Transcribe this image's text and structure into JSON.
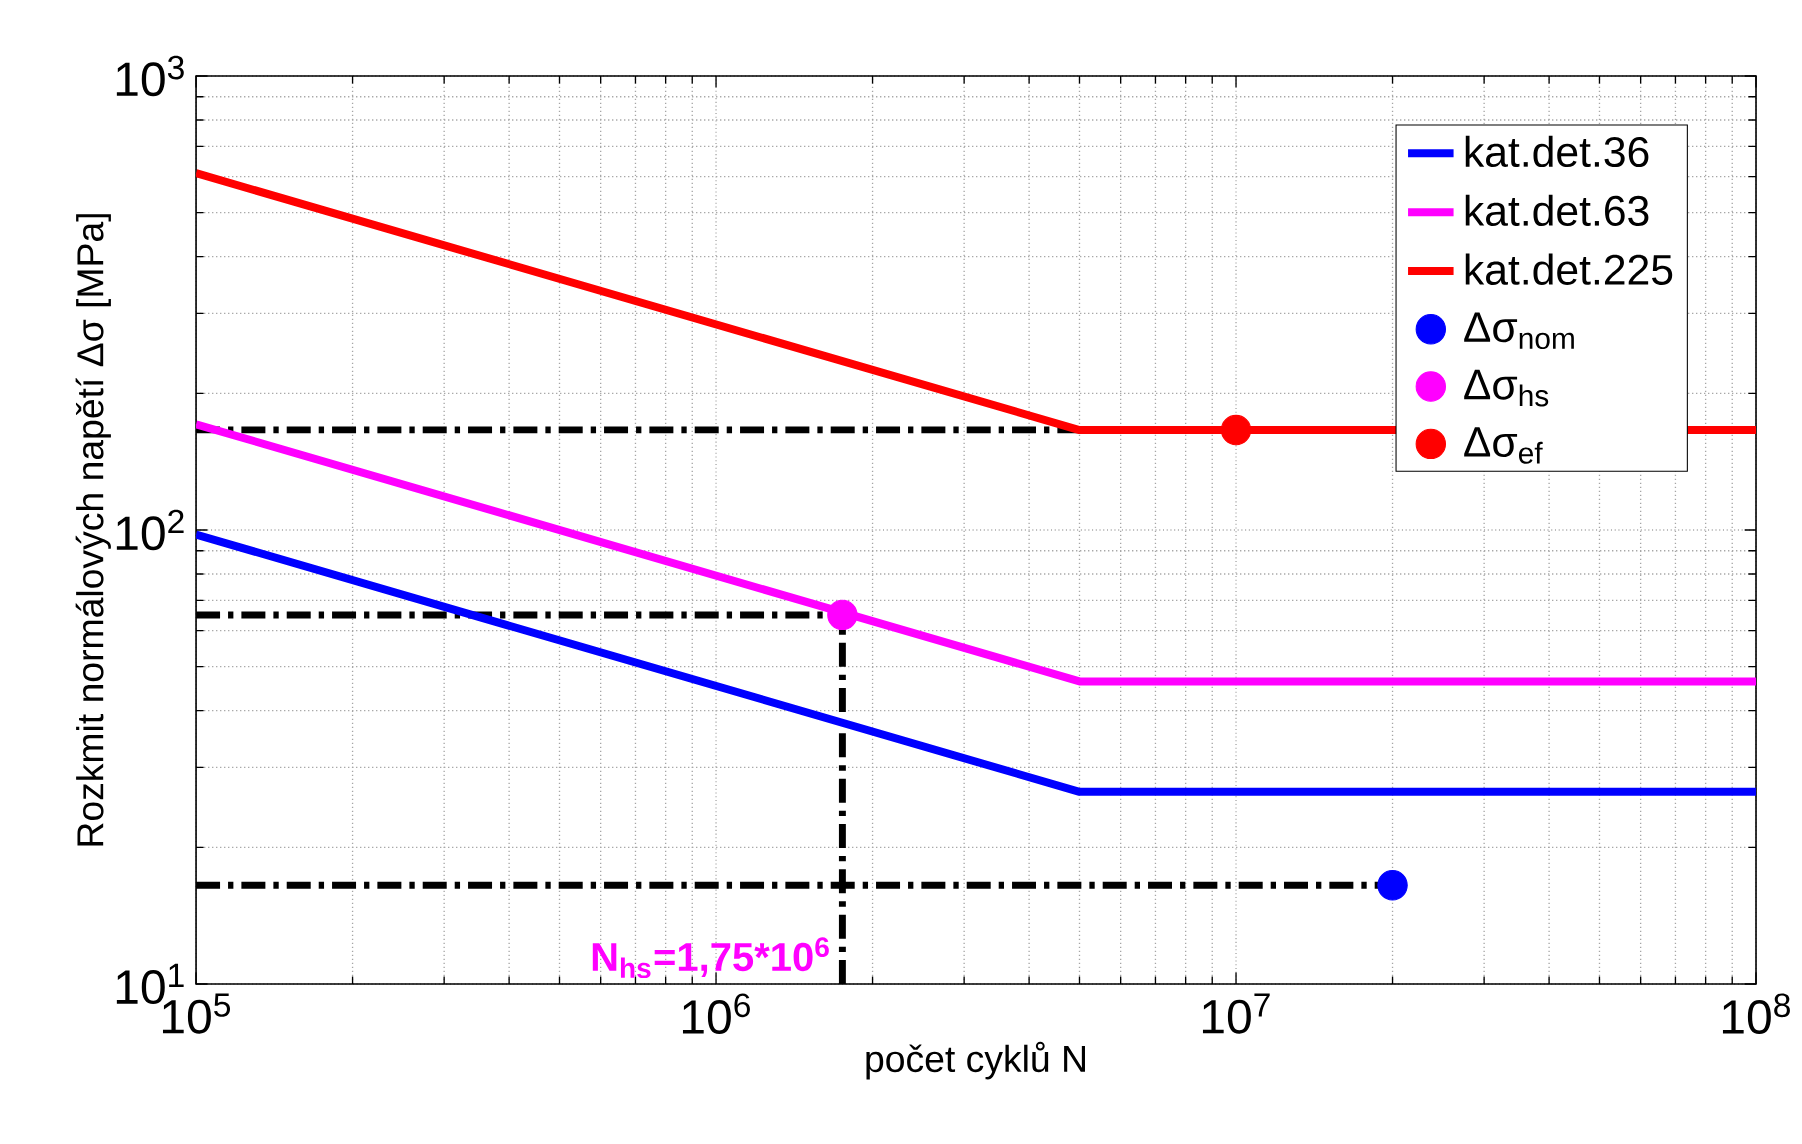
{
  "chart_data": {
    "type": "line",
    "xlabel": "počet cyklů N",
    "ylabel": "Rozkmit normálových napětí Δσ [MPa]",
    "log": "xy",
    "xlim": [
      100000,
      100000000
    ],
    "ylim": [
      10,
      1000
    ],
    "xticks": [
      {
        "value": 100000,
        "label": "10$^{5}$"
      },
      {
        "value": 1000000,
        "label": "10$^{6}$"
      },
      {
        "value": 10000000,
        "label": "10$^{7}$"
      },
      {
        "value": 100000000,
        "label": "10$^{8}$"
      }
    ],
    "yticks": [
      {
        "value": 10,
        "label": "10$^{1}$"
      },
      {
        "value": 100,
        "label": "10$^{2}$"
      },
      {
        "value": 1000,
        "label": "10$^{3}$"
      }
    ],
    "grid": true,
    "legend": "top right",
    "series": [
      {
        "color": "#000000",
        "line_style": "dashed",
        "x": [
          100000,
          20000000
        ],
        "values": [
          16.5,
          16.5
        ]
      },
      {
        "color": "#000000",
        "line_style": "dashed",
        "x": [
          100000,
          1750000
        ],
        "values": [
          65,
          65
        ]
      },
      {
        "color": "#000000",
        "line_style": "dashed",
        "x": [
          100000,
          10000000
        ],
        "values": [
          166,
          166
        ]
      },
      {
        "color": "#000000",
        "line_style": "dashed",
        "x": [
          1750000,
          1750000
        ],
        "values": [
          10,
          65
        ]
      },
      {
        "name": "kat.det.36",
        "color": "#0000ff",
        "line_style": "solid",
        "x": [
          100000,
          5000000,
          100000000
        ],
        "values": [
          97.7,
          26.5,
          26.5
        ]
      },
      {
        "name": "kat.det.63",
        "color": "#ff00ff",
        "line_style": "solid",
        "x": [
          100000,
          5000000,
          100000000
        ],
        "values": [
          171,
          46.4,
          46.4
        ]
      },
      {
        "name": "kat.det.225",
        "color": "#ff0000",
        "line_style": "solid",
        "x": [
          100000,
          5000000,
          100000000
        ],
        "values": [
          611,
          166,
          166
        ]
      },
      {
        "type": "scatter",
        "name": "Δσ$_{nom}$",
        "color": "#0000ff",
        "marker": "circle",
        "x": [
          20000000
        ],
        "values": [
          16.5
        ]
      },
      {
        "type": "scatter",
        "name": "Δσ$_{hs}$",
        "color": "#ff00ff",
        "marker": "circle",
        "x": [
          1750000
        ],
        "values": [
          65
        ]
      },
      {
        "type": "scatter",
        "name": "Δσ$_{ef}$",
        "color": "#ff0000",
        "marker": "circle",
        "x": [
          10000000
        ],
        "values": [
          166
        ]
      }
    ],
    "annotations": [
      {
        "text": "N$_{hs}$=1,75*10$^{6}$",
        "x": 1750000,
        "y": 10
      }
    ]
  }
}
